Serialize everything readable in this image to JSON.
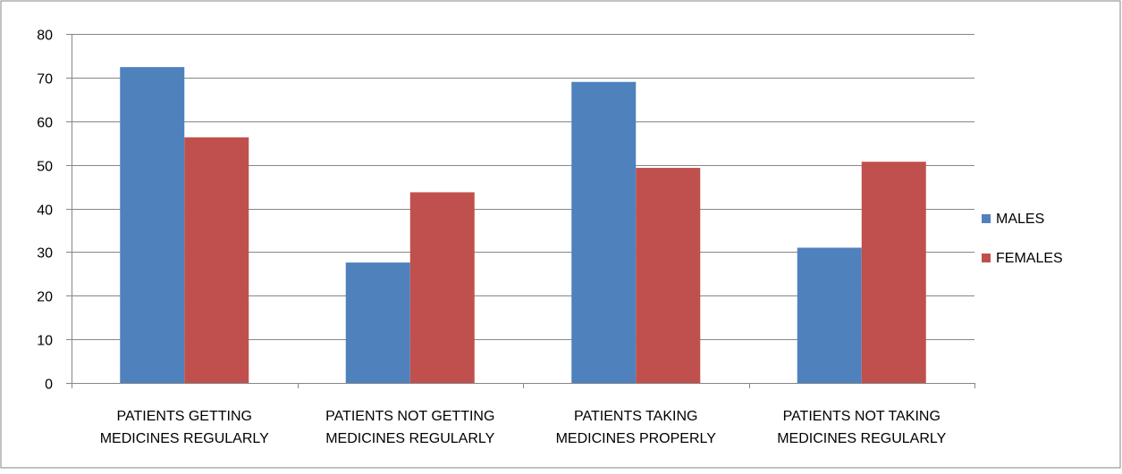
{
  "chart_data": {
    "type": "bar",
    "categories": [
      [
        "PATIENTS GETTING",
        "MEDICINES REGULARLY"
      ],
      [
        "PATIENTS NOT GETTING",
        "MEDICINES REGULARLY"
      ],
      [
        "PATIENTS TAKING",
        "MEDICINES PROPERLY"
      ],
      [
        "PATIENTS NOT TAKING",
        "MEDICINES REGULARLY"
      ]
    ],
    "series": [
      {
        "name": "MALES",
        "color": "#4f81bd",
        "values": [
          72.4,
          27.6,
          69.0,
          31.0
        ]
      },
      {
        "name": "FEMALES",
        "color": "#c0504d",
        "values": [
          56.3,
          43.7,
          49.3,
          50.7
        ]
      }
    ],
    "ylim": [
      0,
      80
    ],
    "yticks": [
      "0",
      "10",
      "20",
      "30",
      "40",
      "50",
      "60",
      "70",
      "80"
    ],
    "grid": true,
    "legend_position": "right",
    "title": "",
    "xlabel": "",
    "ylabel": ""
  }
}
